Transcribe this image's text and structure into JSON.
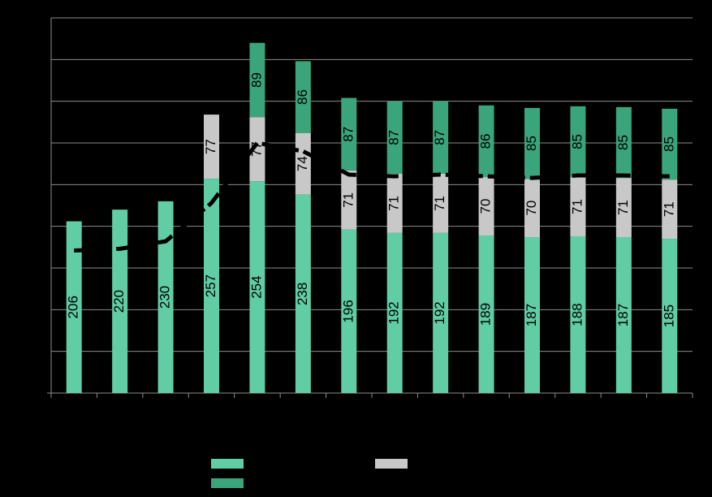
{
  "chart_data": {
    "type": "bar",
    "stacked": true,
    "categories": [
      null,
      null,
      null,
      null,
      null,
      null,
      null,
      null,
      null,
      null,
      null,
      null,
      null,
      null
    ],
    "series": [
      {
        "color": "#60cda4",
        "values": [
          206,
          220,
          230,
          257,
          254,
          238,
          196,
          192,
          192,
          189,
          187,
          188,
          187,
          185
        ]
      },
      {
        "color": "#c8c8c8",
        "values": [
          null,
          null,
          null,
          77,
          77,
          74,
          71,
          71,
          71,
          70,
          70,
          71,
          71,
          71
        ]
      },
      {
        "color": "#3aa57a",
        "values": [
          null,
          null,
          null,
          null,
          89,
          86,
          87,
          87,
          87,
          86,
          85,
          85,
          85,
          85
        ]
      },
      {
        "type": "line",
        "color": "#000000",
        "values": [
          171,
          173,
          182,
          228,
          300,
          290,
          262,
          260,
          262,
          260,
          258,
          261,
          261,
          260
        ]
      }
    ],
    "ylim": [
      0,
      450
    ],
    "yticks": [
      0,
      50,
      100,
      150,
      200,
      250,
      300,
      350,
      400,
      450
    ],
    "grid": true
  }
}
